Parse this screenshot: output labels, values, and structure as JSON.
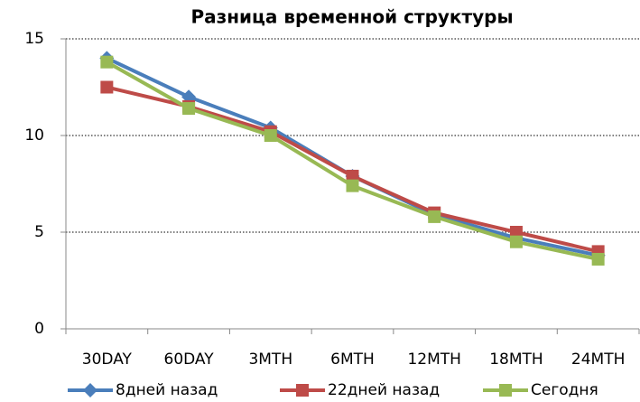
{
  "chart_data": {
    "type": "line",
    "title": "Разница временной структуры",
    "categories": [
      "30DAY",
      "60DAY",
      "3MTH",
      "6MTH",
      "12MTH",
      "18MTH",
      "24MTH"
    ],
    "series": [
      {
        "name": "8дней назад",
        "color": "#4a7ebb",
        "marker": "diamond",
        "values": [
          14.0,
          12.0,
          10.4,
          7.9,
          5.9,
          4.7,
          3.8
        ]
      },
      {
        "name": "22дней назад",
        "color": "#be4b48",
        "marker": "square",
        "values": [
          12.5,
          11.5,
          10.2,
          7.9,
          6.0,
          5.0,
          4.0
        ]
      },
      {
        "name": "Сегодня",
        "color": "#98b954",
        "marker": "square",
        "values": [
          13.8,
          11.4,
          10.0,
          7.4,
          5.8,
          4.5,
          3.6
        ]
      }
    ],
    "ylim": [
      0,
      15
    ],
    "yticks": [
      0,
      5,
      10,
      15
    ],
    "grid": true,
    "legend": "bottom"
  }
}
